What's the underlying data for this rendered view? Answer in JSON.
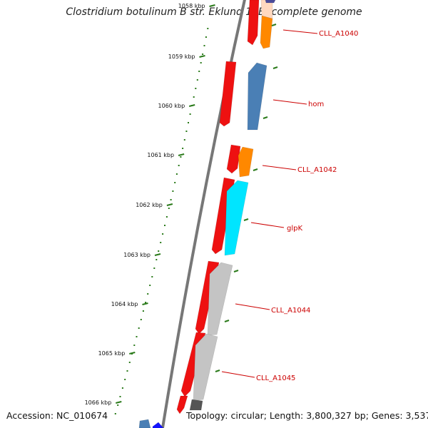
{
  "title": "Clostridium botulinum B str. Eklund 17B, complete genome",
  "accession_text": "Accession: NC_010674",
  "summary_text": "Topology: circular; Length: 3,800,327 bp; Genes: 3,537",
  "scale_ticks": [
    "1058 kbp",
    "1059 kbp",
    "1060 kbp",
    "1061 kbp",
    "1062 kbp",
    "1063 kbp",
    "1064 kbp",
    "1065 kbp",
    "1066 kbp"
  ],
  "gene_labels": [
    "CLL_A1040",
    "hom",
    "CLL_A1042",
    "glpK",
    "CLL_A1044",
    "CLL_A1045"
  ],
  "colors": {
    "backbone": "#777777",
    "scale": "#2a7a1a",
    "label_line": "#cc0000",
    "forward_strand": "#ee1111",
    "orange": "#ff8800",
    "steelblue": "#4a7fb5",
    "cyan": "#00e5ff",
    "light_gray": "#c4c4c4",
    "dark_gray": "#555555",
    "blue": "#1414ff"
  }
}
